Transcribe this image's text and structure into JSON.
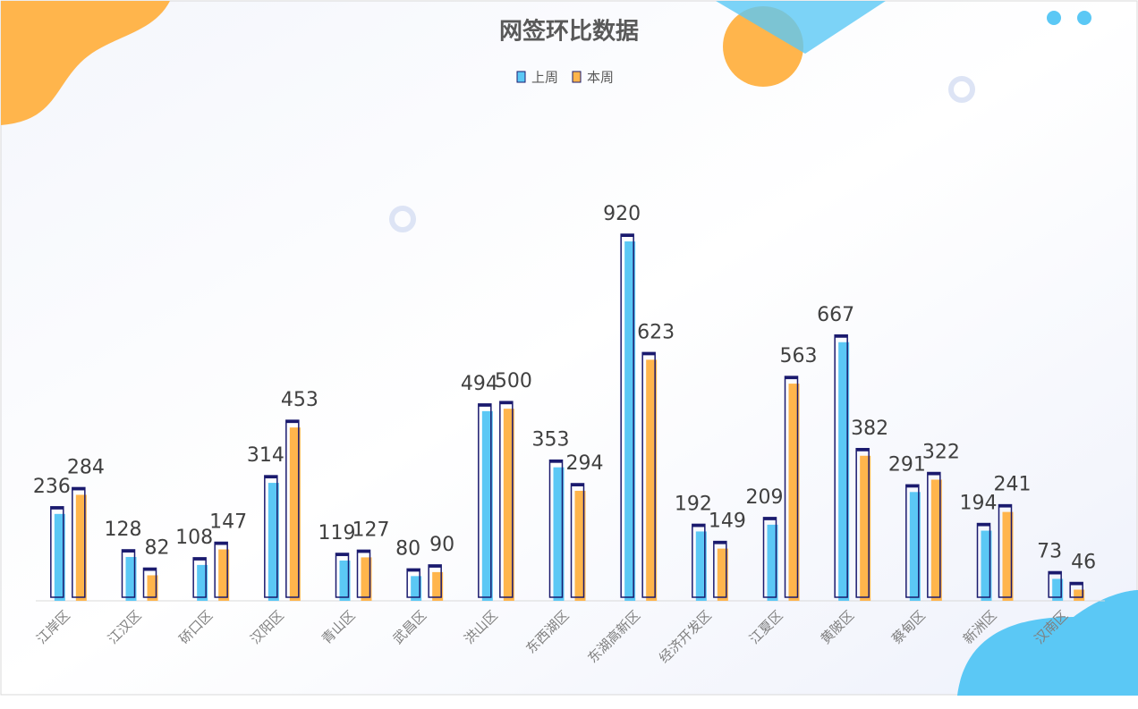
{
  "chart_data": {
    "type": "bar",
    "title": "网签环比数据",
    "categories": [
      "江岸区",
      "江汉区",
      "硚口区",
      "汉阳区",
      "青山区",
      "武昌区",
      "洪山区",
      "东西湖区",
      "东湖高新区",
      "经济开发区",
      "江夏区",
      "黄陂区",
      "蔡甸区",
      "新洲区",
      "汉南区"
    ],
    "series": [
      {
        "name": "上周",
        "color": "#5bc8f5",
        "values": [
          236,
          128,
          108,
          314,
          119,
          80,
          494,
          353,
          920,
          192,
          209,
          667,
          291,
          194,
          73
        ]
      },
      {
        "name": "本周",
        "color": "#ffb54c",
        "values": [
          284,
          82,
          147,
          453,
          127,
          90,
          500,
          294,
          623,
          149,
          563,
          382,
          322,
          241,
          46
        ]
      }
    ],
    "legend": "top"
  }
}
